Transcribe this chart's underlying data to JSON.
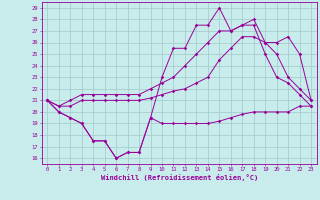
{
  "title": "",
  "xlabel": "Windchill (Refroidissement éolien,°C)",
  "bg_color": "#c8ecec",
  "grid_color": "#a0c8c8",
  "line_color": "#990099",
  "x_ticks": [
    0,
    1,
    2,
    3,
    4,
    5,
    6,
    7,
    8,
    9,
    10,
    11,
    12,
    13,
    14,
    15,
    16,
    17,
    18,
    19,
    20,
    21,
    22,
    23
  ],
  "ylim": [
    15.5,
    29.5
  ],
  "yticks": [
    16,
    17,
    18,
    19,
    20,
    21,
    22,
    23,
    24,
    25,
    26,
    27,
    28,
    29
  ],
  "line1_y": [
    21.0,
    20.0,
    19.5,
    19.0,
    17.5,
    17.5,
    16.0,
    16.5,
    16.5,
    19.5,
    19.0,
    19.0,
    19.0,
    19.0,
    19.0,
    19.2,
    19.5,
    19.8,
    20.0,
    20.0,
    20.0,
    20.0,
    20.5,
    20.5
  ],
  "line2_y": [
    21.0,
    20.5,
    20.5,
    21.0,
    21.0,
    21.0,
    21.0,
    21.0,
    21.0,
    21.2,
    21.5,
    21.8,
    22.0,
    22.5,
    23.0,
    24.5,
    25.5,
    26.5,
    26.5,
    26.0,
    26.0,
    26.5,
    25.0,
    21.0
  ],
  "line3_y": [
    21.0,
    20.0,
    19.5,
    19.0,
    17.5,
    17.5,
    16.0,
    16.5,
    16.5,
    19.5,
    23.0,
    25.5,
    25.5,
    27.5,
    27.5,
    29.0,
    27.0,
    27.5,
    27.5,
    25.0,
    23.0,
    22.5,
    21.5,
    20.5
  ],
  "line4_y": [
    21.0,
    20.5,
    21.0,
    21.5,
    21.5,
    21.5,
    21.5,
    21.5,
    21.5,
    22.0,
    22.5,
    23.0,
    24.0,
    25.0,
    26.0,
    27.0,
    27.0,
    27.5,
    28.0,
    26.0,
    25.0,
    23.0,
    22.0,
    21.0
  ]
}
